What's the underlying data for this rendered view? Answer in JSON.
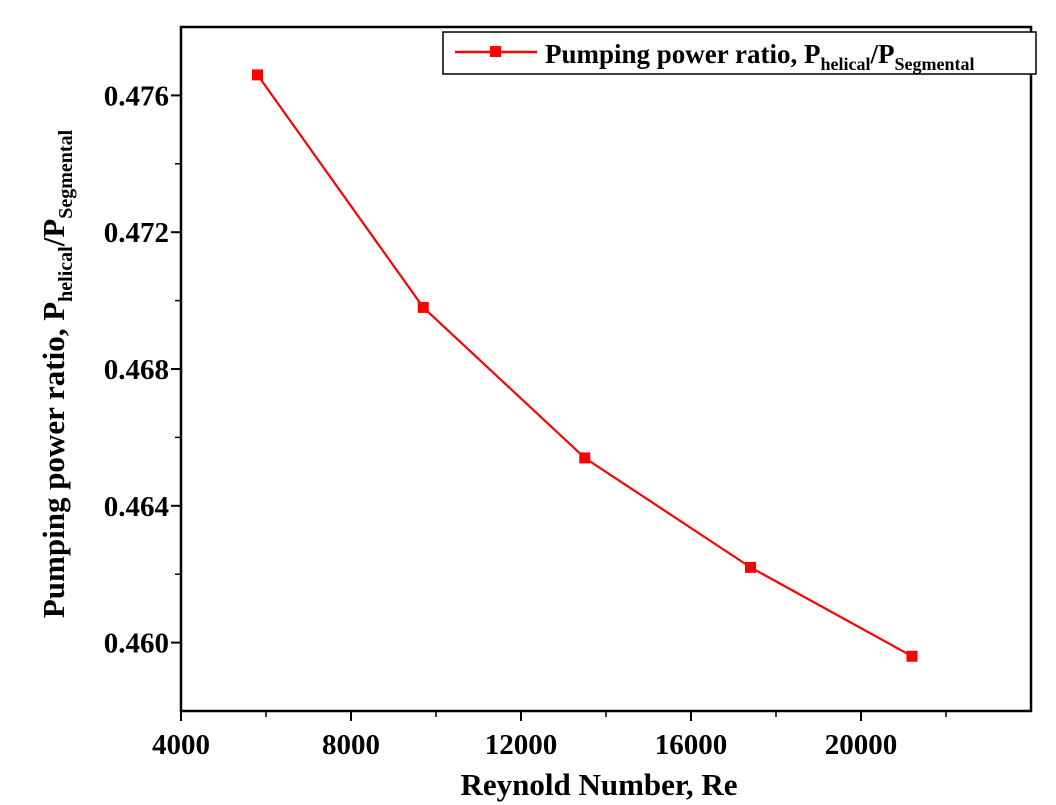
{
  "chart_data": {
    "type": "line",
    "title": "",
    "xlabel": "Reynold Number, Re",
    "ylabel": {
      "base": "Pumping power ratio, P",
      "sub1": "helical",
      "mid": "/P",
      "sub2": "Segmental"
    },
    "xlim": [
      4000,
      24000
    ],
    "ylim": [
      0.458,
      0.478
    ],
    "xticks": [
      4000,
      8000,
      12000,
      16000,
      20000
    ],
    "xtick_labels": [
      "4000",
      "8000",
      "12000",
      "16000",
      "20000"
    ],
    "yticks": [
      0.46,
      0.464,
      0.468,
      0.472,
      0.476
    ],
    "ytick_labels": [
      "0.460",
      "0.464",
      "0.468",
      "0.472",
      "0.476"
    ],
    "grid": false,
    "legend_position": "top-right",
    "series": [
      {
        "name": {
          "base": "Pumping power ratio, P",
          "sub1": "helical",
          "mid": "/P",
          "sub2": "Segmental"
        },
        "color": "#ff0000",
        "marker": "square",
        "x": [
          5800,
          9700,
          13500,
          17400,
          21200
        ],
        "y": [
          0.4766,
          0.4698,
          0.4654,
          0.4622,
          0.4596
        ]
      }
    ]
  }
}
